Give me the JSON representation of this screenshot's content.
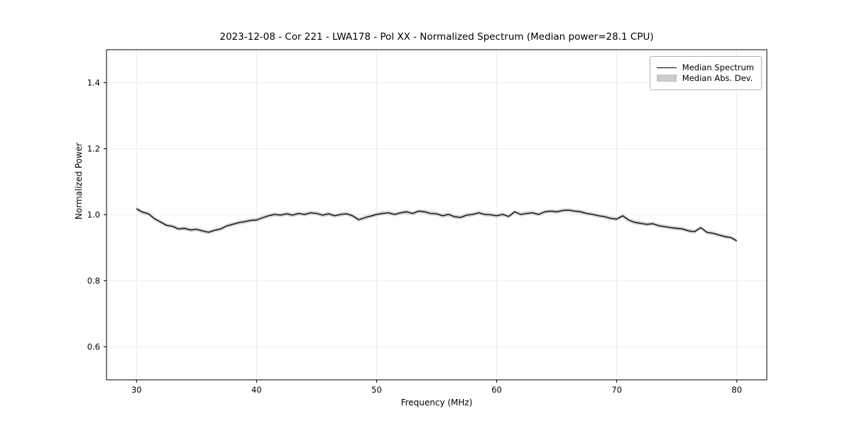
{
  "chart_data": {
    "type": "line",
    "title": "2023-12-08 - Cor 221 - LWA178 - Pol XX - Normalized Spectrum (Median power=28.1 CPU)",
    "xlabel": "Frequency (MHz)",
    "ylabel": "Normalized Power",
    "xlim": [
      27.5,
      82.5
    ],
    "ylim": [
      0.5,
      1.5
    ],
    "xticks": [
      30,
      40,
      50,
      60,
      70,
      80
    ],
    "yticks": [
      0.6,
      0.8,
      1.0,
      1.2,
      1.4
    ],
    "grid": true,
    "line_color": "#000000",
    "band_color": "#cccccc",
    "grid_color": "#e6e6e6",
    "mad": 0.006,
    "legend": {
      "position": "upper right",
      "entries": [
        {
          "label": "Median Spectrum",
          "type": "line",
          "color": "#000000"
        },
        {
          "label": "Median Abs. Dev.",
          "type": "band",
          "color": "#cccccc"
        }
      ]
    },
    "series": [
      {
        "name": "Median Spectrum",
        "x": [
          30.0,
          30.5,
          31.0,
          31.5,
          32.0,
          32.5,
          33.0,
          33.5,
          34.0,
          34.5,
          35.0,
          35.5,
          36.0,
          36.5,
          37.0,
          37.5,
          38.0,
          38.5,
          39.0,
          39.5,
          40.0,
          40.5,
          41.0,
          41.5,
          42.0,
          42.5,
          43.0,
          43.5,
          44.0,
          44.5,
          45.0,
          45.5,
          46.0,
          46.5,
          47.0,
          47.5,
          48.0,
          48.5,
          49.0,
          49.5,
          50.0,
          50.5,
          51.0,
          51.5,
          52.0,
          52.5,
          53.0,
          53.5,
          54.0,
          54.5,
          55.0,
          55.5,
          56.0,
          56.5,
          57.0,
          57.5,
          58.0,
          58.5,
          59.0,
          59.5,
          60.0,
          60.5,
          61.0,
          61.5,
          62.0,
          62.5,
          63.0,
          63.5,
          64.0,
          64.5,
          65.0,
          65.5,
          66.0,
          66.5,
          67.0,
          67.5,
          68.0,
          68.5,
          69.0,
          69.5,
          70.0,
          70.5,
          71.0,
          71.5,
          72.0,
          72.5,
          73.0,
          73.5,
          74.0,
          74.5,
          75.0,
          75.5,
          76.0,
          76.5,
          77.0,
          77.5,
          78.0,
          78.5,
          79.0,
          79.5,
          80.0
        ],
        "y": [
          1.018,
          1.008,
          1.003,
          0.988,
          0.978,
          0.968,
          0.965,
          0.957,
          0.959,
          0.954,
          0.956,
          0.951,
          0.947,
          0.953,
          0.957,
          0.966,
          0.971,
          0.976,
          0.979,
          0.983,
          0.984,
          0.991,
          0.997,
          1.001,
          0.999,
          1.003,
          0.999,
          1.004,
          1.001,
          1.006,
          1.004,
          0.999,
          1.003,
          0.997,
          1.001,
          1.003,
          0.997,
          0.985,
          0.991,
          0.996,
          1.001,
          1.004,
          1.006,
          1.001,
          1.006,
          1.009,
          1.004,
          1.011,
          1.009,
          1.004,
          1.003,
          0.997,
          1.001,
          0.994,
          0.992,
          0.999,
          1.001,
          1.006,
          1.001,
          1.0,
          0.997,
          1.001,
          0.995,
          1.009,
          1.001,
          1.004,
          1.006,
          1.001,
          1.009,
          1.011,
          1.009,
          1.013,
          1.014,
          1.011,
          1.009,
          1.004,
          1.001,
          0.997,
          0.994,
          0.989,
          0.987,
          0.997,
          0.984,
          0.977,
          0.974,
          0.971,
          0.973,
          0.967,
          0.964,
          0.961,
          0.959,
          0.957,
          0.951,
          0.949,
          0.961,
          0.947,
          0.944,
          0.939,
          0.934,
          0.931,
          0.921
        ]
      }
    ]
  }
}
